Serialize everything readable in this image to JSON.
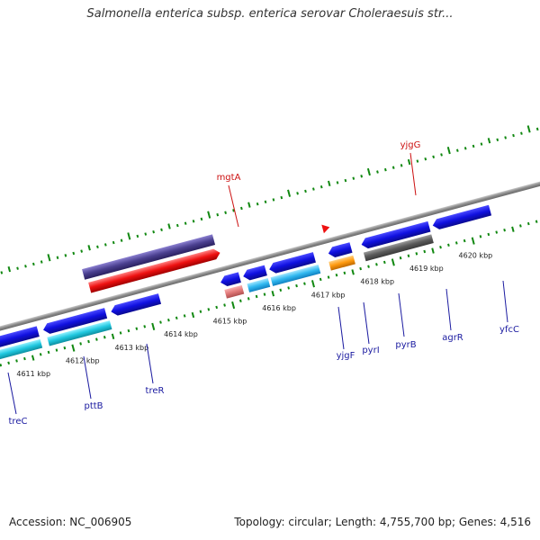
{
  "title": "Salmonella enterica subsp. enterica serovar Choleraesuis str...",
  "footer": {
    "accession": "Accession: NC_006905",
    "summary": "Topology: circular; Length: 4,755,700 bp; Genes: 4,516"
  },
  "kbp_labels": [
    "4611 kbp",
    "4612 kbp",
    "4613 kbp",
    "4614 kbp",
    "4615 kbp",
    "4616 kbp",
    "4617 kbp",
    "4618 kbp",
    "4619 kbp",
    "4620 kbp"
  ],
  "genes": {
    "mgtA": "mgtA",
    "yjgG": "yjgG",
    "treC": "treC",
    "pttB": "pttB",
    "treR": "treR",
    "yjgF": "yjgF",
    "pyrI": "pyrI",
    "pyrB": "pyrB",
    "agrR": "agrR",
    "yfcC": "yfcC"
  },
  "colors": {
    "forward_gene": "#1010e0",
    "forward_rna": "#00bcd4",
    "reverse_gene": "#4a3f8f",
    "reverse_rna": "#ee1111",
    "ticks": "#118811",
    "backbone": "#8a8a8a",
    "label_blue": "#1a1aa0",
    "label_red": "#cc1111"
  }
}
